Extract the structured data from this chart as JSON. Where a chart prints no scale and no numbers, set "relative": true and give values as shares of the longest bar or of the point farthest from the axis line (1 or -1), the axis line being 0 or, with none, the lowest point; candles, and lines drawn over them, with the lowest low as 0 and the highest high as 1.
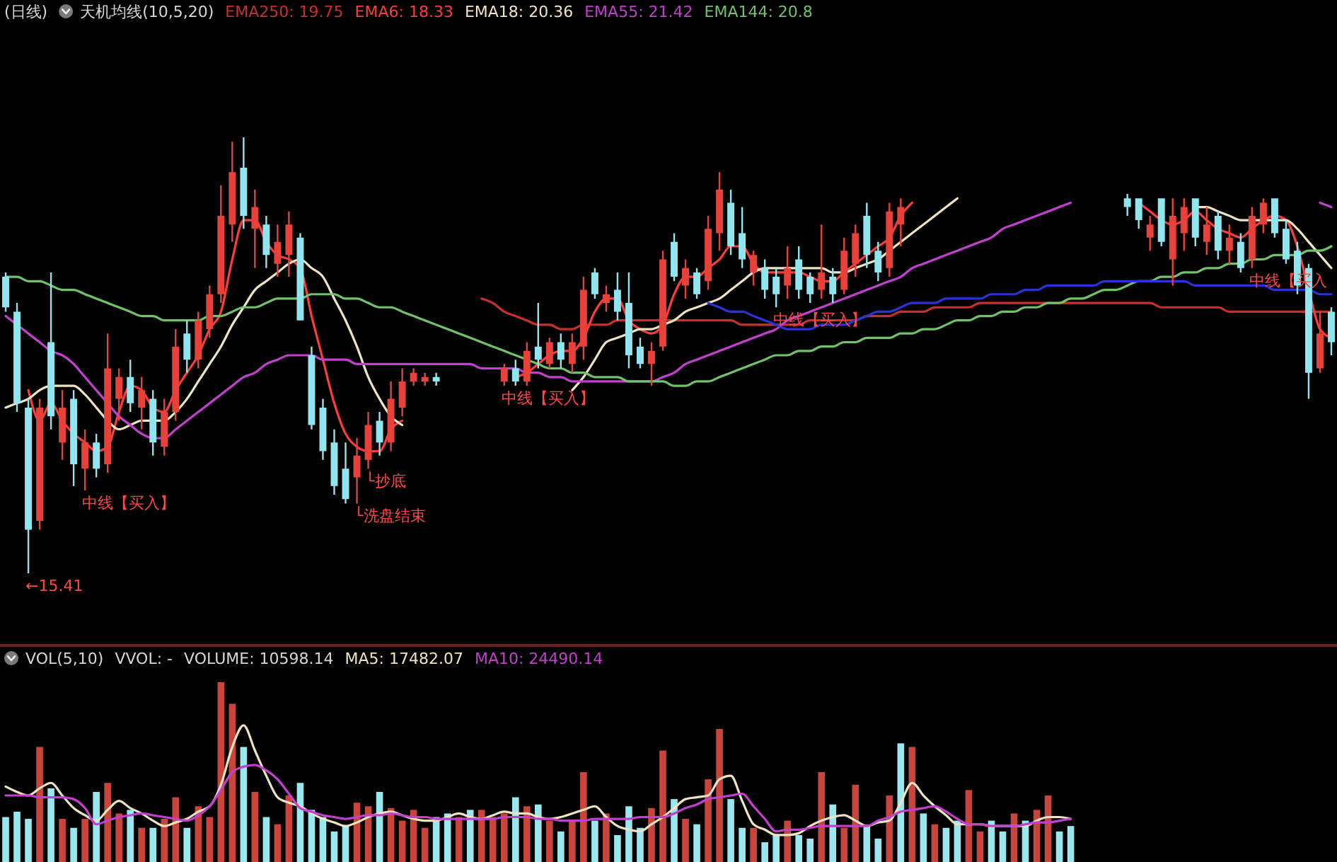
{
  "chart_data": [
    {
      "type": "candlestick",
      "title": "(日线)",
      "subtitle": "天机均线(10,5,20)",
      "relative": true,
      "categories": [
        null,
        null,
        null,
        null,
        null,
        null,
        null,
        null,
        null,
        null,
        null,
        null,
        null,
        null,
        null,
        null,
        null,
        null,
        null,
        null,
        null,
        null,
        null,
        null,
        null,
        null,
        null,
        null,
        null,
        null,
        null,
        null,
        null,
        null,
        null,
        null,
        null,
        null,
        null,
        null,
        null,
        null,
        null,
        null,
        null,
        null,
        null,
        null,
        null,
        null,
        null,
        null,
        null,
        null,
        null,
        null,
        null,
        null,
        null,
        null,
        null,
        null,
        null,
        null,
        null,
        null,
        null,
        null,
        null,
        null,
        null,
        null,
        null,
        null,
        null,
        null,
        null,
        null,
        null,
        null,
        null,
        null,
        null,
        null,
        null,
        null,
        null,
        null,
        null,
        null,
        null,
        null,
        null,
        null,
        null,
        null,
        null,
        null,
        null,
        null,
        null,
        null,
        null,
        null,
        null,
        null,
        null,
        null,
        null,
        null,
        null,
        null,
        null,
        null,
        null,
        null,
        null,
        null
      ],
      "ohlc": [
        [
          0.68,
          0.69,
          0.6,
          0.61
        ],
        [
          0.6,
          0.62,
          0.37,
          0.39
        ],
        [
          0.38,
          0.4,
          0,
          0.1
        ],
        [
          0.12,
          0.4,
          0.1,
          0.38
        ],
        [
          0.53,
          0.69,
          0.33,
          0.36
        ],
        [
          0.3,
          0.42,
          0.26,
          0.38
        ],
        [
          0.4,
          0.42,
          0.2,
          0.25
        ],
        [
          0.24,
          0.33,
          0.19,
          0.3
        ],
        [
          0.3,
          0.32,
          0.22,
          0.24
        ],
        [
          0.25,
          0.55,
          0.23,
          0.47
        ],
        [
          0.4,
          0.47,
          0.35,
          0.45
        ],
        [
          0.45,
          0.49,
          0.37,
          0.39
        ],
        [
          0.38,
          0.45,
          0.33,
          0.42
        ],
        [
          0.4,
          0.42,
          0.27,
          0.3
        ],
        [
          0.29,
          0.4,
          0.27,
          0.37
        ],
        [
          0.37,
          0.56,
          0.35,
          0.52
        ],
        [
          0.55,
          0.58,
          0.46,
          0.49
        ],
        [
          0.49,
          0.6,
          0.47,
          0.58
        ],
        [
          0.56,
          0.66,
          0.54,
          0.64
        ],
        [
          0.64,
          0.89,
          0.62,
          0.82
        ],
        [
          0.8,
          0.99,
          0.76,
          0.92
        ],
        [
          0.93,
          1,
          0.79,
          0.82
        ],
        [
          0.79,
          0.88,
          0.7,
          0.84
        ],
        [
          0.8,
          0.82,
          0.7,
          0.73
        ],
        [
          0.71,
          0.8,
          0.68,
          0.76
        ],
        [
          0.73,
          0.83,
          0.68,
          0.8
        ],
        [
          0.77,
          0.78,
          0.58,
          0.58
        ],
        [
          0.5,
          0.52,
          0.33,
          0.34
        ],
        [
          0.38,
          0.4,
          0.26,
          0.28
        ],
        [
          0.3,
          0.33,
          0.18,
          0.2
        ],
        [
          0.24,
          0.3,
          0.16,
          0.17
        ],
        [
          0.22,
          0.31,
          0.16,
          0.27
        ],
        [
          0.26,
          0.37,
          0.24,
          0.34
        ],
        [
          0.35,
          0.37,
          0.27,
          0.3
        ],
        [
          0.3,
          0.44,
          0.28,
          0.4
        ],
        [
          0.38,
          0.47,
          0.36,
          0.44
        ],
        [
          0.44,
          0.47,
          0.43,
          0.46
        ],
        [
          0.44,
          0.46,
          0.43,
          0.45
        ],
        [
          0.45,
          0.46,
          0.43,
          0.44
        ],
        null,
        null,
        null,
        null,
        null,
        [
          0.44,
          0.48,
          0.43,
          0.47
        ],
        [
          0.47,
          0.49,
          0.43,
          0.44
        ],
        [
          0.44,
          0.53,
          0.43,
          0.51
        ],
        [
          0.52,
          0.62,
          0.47,
          0.49
        ],
        [
          0.48,
          0.54,
          0.47,
          0.53
        ],
        [
          0.53,
          0.55,
          0.47,
          0.49
        ],
        [
          0.48,
          0.55,
          0.46,
          0.53
        ],
        [
          0.52,
          0.68,
          0.49,
          0.65
        ],
        [
          0.69,
          0.7,
          0.63,
          0.64
        ],
        [
          0.62,
          0.66,
          0.6,
          0.64
        ],
        [
          0.65,
          0.69,
          0.58,
          0.6
        ],
        [
          0.62,
          0.69,
          0.47,
          0.5
        ],
        [
          0.52,
          0.54,
          0.47,
          0.48
        ],
        [
          0.48,
          0.53,
          0.43,
          0.51
        ],
        [
          0.52,
          0.74,
          0.51,
          0.72
        ],
        [
          0.76,
          0.78,
          0.67,
          0.68
        ],
        [
          0.66,
          0.72,
          0.63,
          0.7
        ],
        [
          0.69,
          0.7,
          0.63,
          0.64
        ],
        [
          0.67,
          0.82,
          0.65,
          0.79
        ],
        [
          0.78,
          0.92,
          0.74,
          0.88
        ],
        [
          0.85,
          0.88,
          0.73,
          0.75
        ],
        [
          0.78,
          0.84,
          0.7,
          0.72
        ],
        [
          0.69,
          0.74,
          0.66,
          0.73
        ],
        [
          0.7,
          0.72,
          0.63,
          0.65
        ],
        [
          0.68,
          0.7,
          0.61,
          0.64
        ],
        [
          0.66,
          0.75,
          0.63,
          0.7
        ],
        [
          0.72,
          0.75,
          0.63,
          0.65
        ],
        [
          0.68,
          0.69,
          0.62,
          0.64
        ],
        [
          0.65,
          0.8,
          0.63,
          0.69
        ],
        [
          0.68,
          0.7,
          0.62,
          0.64
        ],
        [
          0.65,
          0.77,
          0.64,
          0.74
        ],
        [
          0.71,
          0.8,
          0.68,
          0.78
        ],
        [
          0.82,
          0.85,
          0.7,
          0.73
        ],
        [
          0.74,
          0.76,
          0.67,
          0.69
        ],
        [
          0.7,
          0.85,
          0.68,
          0.83
        ],
        [
          0.8,
          0.86,
          0.75,
          0.84
        ],
        null,
        null,
        null,
        null,
        null,
        null,
        null,
        null,
        null,
        null,
        null,
        null,
        null,
        null,
        null,
        null,
        null,
        null,
        null,
        [
          0.86,
          0.87,
          0.82,
          0.84
        ],
        [
          0.86,
          0.86,
          0.79,
          0.81
        ],
        [
          0.77,
          0.82,
          0.74,
          0.8
        ],
        [
          0.86,
          0.86,
          0.75,
          0.76
        ],
        [
          0.72,
          0.86,
          0.66,
          0.82
        ],
        [
          0.78,
          0.86,
          0.74,
          0.84
        ],
        [
          0.86,
          0.86,
          0.75,
          0.77
        ],
        [
          0.76,
          0.84,
          0.73,
          0.8
        ],
        [
          0.82,
          0.83,
          0.72,
          0.74
        ],
        [
          0.74,
          0.8,
          0.71,
          0.77
        ],
        [
          0.76,
          0.78,
          0.69,
          0.7
        ],
        [
          0.72,
          0.84,
          0.7,
          0.82
        ],
        [
          0.8,
          0.86,
          0.78,
          0.85
        ],
        [
          0.86,
          0.86,
          0.77,
          0.78
        ],
        [
          0.79,
          0.81,
          0.71,
          0.72
        ],
        [
          0.74,
          0.76,
          0.64,
          0.66
        ],
        [
          0.7,
          0.71,
          0.4,
          0.46
        ],
        [
          0.47,
          0.6,
          0.46,
          0.55
        ],
        [
          0.6,
          0.61,
          0.5,
          0.53
        ]
      ],
      "colors": [
        "#8fe6ee",
        "#8fe6ee",
        "#8fe6ee",
        "#e8413a",
        "#8fe6ee",
        "#e8413a",
        "#8fe6ee",
        "#e8413a",
        "#8fe6ee",
        "#e8413a",
        "#e8413a",
        "#8fe6ee",
        "#e8413a",
        "#8fe6ee",
        "#e8413a",
        "#e8413a",
        "#8fe6ee",
        "#e8413a",
        "#e8413a",
        "#e8413a",
        "#e8413a",
        "#8fe6ee",
        "#e8413a",
        "#8fe6ee",
        "#e8413a",
        "#e8413a",
        "#8fe6ee",
        "#8fe6ee",
        "#8fe6ee",
        "#8fe6ee",
        "#8fe6ee",
        "#e8413a",
        "#e8413a",
        "#8fe6ee",
        "#e8413a",
        "#e8413a",
        "#e8413a",
        "#e8413a",
        "#8fe6ee",
        null,
        null,
        null,
        null,
        null,
        "#e8413a",
        "#8fe6ee",
        "#e8413a",
        "#8fe6ee",
        "#e8413a",
        "#8fe6ee",
        "#e8413a",
        "#e8413a",
        "#8fe6ee",
        "#e8413a",
        "#8fe6ee",
        "#8fe6ee",
        "#8fe6ee",
        "#e8413a",
        "#e8413a",
        "#8fe6ee",
        "#e8413a",
        "#8fe6ee",
        "#e8413a",
        "#e8413a",
        "#8fe6ee",
        "#8fe6ee",
        "#e8413a",
        "#8fe6ee",
        "#8fe6ee",
        "#e8413a",
        "#8fe6ee",
        "#8fe6ee",
        "#e8413a",
        "#8fe6ee",
        "#e8413a",
        "#e8413a",
        "#8fe6ee",
        "#8fe6ee",
        "#e8413a",
        "#e8413a",
        null,
        null,
        null,
        null,
        null,
        null,
        null,
        null,
        null,
        null,
        null,
        null,
        null,
        null,
        null,
        null,
        null,
        null,
        null,
        "#8fe6ee",
        "#8fe6ee",
        "#e8413a",
        "#8fe6ee",
        "#e8413a",
        "#e8413a",
        "#8fe6ee",
        "#e8413a",
        "#8fe6ee",
        "#e8413a",
        "#8fe6ee",
        "#e8413a",
        "#e8413a",
        "#8fe6ee",
        "#8fe6ee",
        "#8fe6ee",
        "#8fe6ee",
        "#e8413a",
        "#8fe6ee"
      ],
      "value_labels": [
        null,
        null,
        "←15.41",
        null,
        null,
        null,
        null,
        "中线【买入】",
        null,
        null,
        null,
        null,
        null,
        null,
        null,
        null,
        null,
        null,
        null,
        null,
        null,
        null,
        null,
        null,
        null,
        null,
        null,
        null,
        null,
        null,
        null,
        "└洗盘结束",
        "└抄底",
        null,
        null,
        null,
        null,
        null,
        null,
        null,
        null,
        null,
        null,
        null,
        "中线【买入】",
        null,
        null,
        null,
        null,
        null,
        null,
        null,
        null,
        null,
        null,
        null,
        null,
        null,
        null,
        null,
        null,
        null,
        null,
        null,
        null,
        null,
        null,
        null,
        "中线【买入】",
        null,
        null,
        null,
        null,
        null,
        null,
        null,
        null,
        null,
        null,
        null,
        null,
        null,
        null,
        null,
        null,
        null,
        null,
        null,
        null,
        null,
        null,
        null,
        null,
        null,
        null,
        null,
        null,
        null,
        null,
        null,
        null,
        null,
        null,
        null,
        null,
        null,
        null,
        null,
        null,
        null,
        "中线【买入",
        null,
        null,
        null,
        null,
        null,
        null,
        null
      ],
      "series": [
        {
          "name": "EMA250: 19.75",
          "type": "line",
          "color": "#c8302c",
          "values": [
            null,
            null,
            null,
            null,
            null,
            null,
            null,
            null,
            null,
            null,
            null,
            null,
            null,
            null,
            null,
            null,
            null,
            null,
            null,
            null,
            null,
            null,
            null,
            null,
            null,
            null,
            null,
            null,
            null,
            null,
            null,
            null,
            null,
            null,
            null,
            null,
            null,
            null,
            null,
            null,
            null,
            null,
            0.63,
            0.62,
            0.6,
            0.59,
            0.58,
            0.57,
            0.57,
            0.56,
            0.56,
            0.57,
            0.57,
            0.57,
            0.58,
            0.58,
            0.58,
            0.58,
            0.58,
            0.58,
            0.58,
            0.58,
            0.58,
            0.58,
            0.58,
            0.57,
            0.57,
            0.57,
            0.57,
            0.57,
            0.57,
            0.58,
            0.58,
            0.58,
            0.58,
            0.58,
            0.59,
            0.59,
            0.59,
            0.6,
            0.6,
            0.6,
            0.61,
            0.61,
            0.61,
            0.61,
            0.62,
            0.62,
            0.62,
            0.62,
            0.62,
            0.62,
            0.62,
            0.62,
            0.62,
            0.62,
            0.62,
            0.62,
            0.62,
            0.62,
            0.62,
            0.62,
            0.61,
            0.61,
            0.61,
            0.61,
            0.61,
            0.61,
            0.6,
            0.6,
            0.6,
            0.6,
            0.6,
            0.6,
            0.6,
            0.6,
            0.6,
            0.6
          ]
        },
        {
          "name": "EMA6: 18.33",
          "type": "line",
          "color": "#ff3b3b",
          "values": [
            null,
            null,
            0.42,
            0.35,
            0.39,
            0.35,
            0.32,
            0.3,
            0.28,
            0.29,
            0.37,
            0.43,
            0.42,
            0.38,
            0.37,
            0.42,
            0.46,
            0.5,
            0.56,
            0.6,
            0.72,
            0.81,
            0.81,
            0.76,
            0.73,
            0.72,
            0.7,
            0.59,
            0.49,
            0.39,
            0.32,
            0.29,
            0.28,
            0.28,
            0.33,
            0.35,
            null,
            null,
            null,
            null,
            null,
            null,
            null,
            null,
            null,
            0.45,
            0.46,
            0.48,
            0.5,
            0.51,
            0.51,
            0.54,
            0.6,
            0.63,
            0.63,
            0.58,
            0.56,
            0.55,
            0.57,
            0.64,
            0.68,
            0.68,
            0.7,
            0.72,
            0.75,
            0.75,
            0.71,
            0.69,
            0.69,
            0.69,
            0.69,
            0.68,
            0.67,
            0.67,
            0.69,
            0.71,
            0.73,
            0.75,
            0.77,
            0.82,
            0.85,
            null,
            null,
            null,
            null,
            null,
            null,
            null,
            null,
            null,
            null,
            null,
            null,
            null,
            null,
            null,
            null,
            null,
            null,
            null,
            0.85,
            0.83,
            0.81,
            0.8,
            0.81,
            0.83,
            0.81,
            0.79,
            0.78,
            0.77,
            0.79,
            0.81,
            0.82,
            0.81,
            0.75,
            0.65,
            0.56,
            0.54
          ]
        },
        {
          "name": "EMA18: 20.36",
          "type": "line",
          "color": "#efe3c2",
          "values": [
            0.38,
            0.39,
            0.4,
            0.42,
            0.43,
            0.43,
            0.43,
            0.41,
            0.38,
            0.35,
            0.33,
            0.34,
            0.35,
            0.35,
            0.35,
            0.37,
            0.4,
            0.44,
            0.48,
            0.52,
            0.57,
            0.61,
            0.65,
            0.67,
            0.69,
            0.71,
            0.72,
            0.7,
            0.68,
            0.63,
            0.58,
            0.52,
            0.45,
            0.4,
            0.36,
            0.34,
            null,
            null,
            null,
            null,
            null,
            null,
            null,
            null,
            null,
            null,
            null,
            null,
            null,
            null,
            0.42,
            0.45,
            0.49,
            0.53,
            0.54,
            0.55,
            0.56,
            0.56,
            0.57,
            0.58,
            0.6,
            0.61,
            0.62,
            0.63,
            0.65,
            0.67,
            0.69,
            0.7,
            0.7,
            0.7,
            0.7,
            0.7,
            0.7,
            0.69,
            0.69,
            0.7,
            0.71,
            0.72,
            0.74,
            0.76,
            0.78,
            0.8,
            0.82,
            0.84,
            0.86,
            null,
            null,
            null,
            null,
            null,
            null,
            null,
            null,
            null,
            null,
            null,
            null,
            null,
            null,
            null,
            null,
            null,
            null,
            null,
            null,
            0.84,
            0.84,
            0.83,
            0.82,
            0.81,
            0.81,
            0.81,
            0.81,
            0.81,
            0.79,
            0.76,
            0.73,
            0.7
          ]
        },
        {
          "name": "EMA55: 21.42",
          "type": "line",
          "color": "#c43fd0",
          "values": [
            0.59,
            0.57,
            0.55,
            0.53,
            0.51,
            0.5,
            0.48,
            0.45,
            0.42,
            0.39,
            0.36,
            0.34,
            0.32,
            0.31,
            0.31,
            0.33,
            0.35,
            0.37,
            0.39,
            0.41,
            0.43,
            0.45,
            0.46,
            0.48,
            0.49,
            0.5,
            0.5,
            0.5,
            0.49,
            0.49,
            0.49,
            0.48,
            0.48,
            0.48,
            0.48,
            0.48,
            0.48,
            0.48,
            0.48,
            0.48,
            0.48,
            0.48,
            0.47,
            0.47,
            0.47,
            0.47,
            0.46,
            0.46,
            0.45,
            0.45,
            0.44,
            0.44,
            0.44,
            0.44,
            0.44,
            0.44,
            0.44,
            0.44,
            0.45,
            0.46,
            0.48,
            0.49,
            0.5,
            0.51,
            0.52,
            0.53,
            0.54,
            0.55,
            0.56,
            0.58,
            0.59,
            0.6,
            0.61,
            0.62,
            0.63,
            0.64,
            0.65,
            0.66,
            0.67,
            0.68,
            0.7,
            0.71,
            0.72,
            0.73,
            0.74,
            0.75,
            0.76,
            0.77,
            0.79,
            0.8,
            0.81,
            0.82,
            0.83,
            0.84,
            0.85,
            null,
            null,
            null,
            null,
            null,
            null,
            null,
            null,
            null,
            null,
            null,
            null,
            null,
            null,
            null,
            null,
            null,
            null,
            null,
            null,
            null,
            0.85,
            0.84
          ]
        },
        {
          "name": "EMA144: 20.8",
          "type": "line",
          "color": "#6fc46a",
          "values": [
            0.68,
            0.68,
            0.67,
            0.67,
            0.66,
            0.65,
            0.65,
            0.64,
            0.63,
            0.62,
            0.61,
            0.6,
            0.59,
            0.59,
            0.58,
            0.58,
            0.58,
            0.58,
            0.59,
            0.59,
            0.6,
            0.61,
            0.61,
            0.62,
            0.63,
            0.63,
            0.63,
            0.64,
            0.64,
            0.64,
            0.63,
            0.63,
            0.62,
            0.61,
            0.61,
            0.6,
            0.59,
            0.58,
            0.57,
            0.56,
            0.55,
            0.54,
            0.53,
            0.52,
            0.51,
            0.5,
            0.49,
            0.48,
            0.47,
            0.47,
            0.46,
            0.46,
            0.45,
            0.45,
            0.45,
            0.44,
            0.44,
            0.44,
            0.44,
            0.43,
            0.43,
            0.44,
            0.44,
            0.45,
            0.46,
            0.47,
            0.48,
            0.49,
            0.5,
            0.5,
            0.51,
            0.51,
            0.52,
            0.52,
            0.53,
            0.53,
            0.54,
            0.54,
            0.54,
            0.55,
            0.55,
            0.56,
            0.56,
            0.57,
            0.58,
            0.58,
            0.59,
            0.59,
            0.6,
            0.6,
            0.61,
            0.61,
            0.62,
            0.62,
            0.63,
            0.63,
            0.64,
            0.65,
            0.65,
            0.66,
            0.67,
            0.67,
            0.68,
            0.68,
            0.69,
            0.69,
            0.7,
            0.7,
            0.71,
            0.71,
            0.72,
            0.72,
            0.73,
            0.73,
            0.73,
            0.74,
            0.74,
            0.75
          ]
        },
        {
          "type": "line",
          "color": "#2a32d8",
          "values": [
            null,
            null,
            null,
            null,
            null,
            null,
            null,
            null,
            null,
            null,
            null,
            null,
            null,
            null,
            null,
            null,
            null,
            null,
            null,
            null,
            null,
            null,
            null,
            null,
            null,
            null,
            null,
            null,
            null,
            null,
            null,
            null,
            null,
            null,
            null,
            null,
            null,
            null,
            null,
            null,
            null,
            null,
            null,
            null,
            null,
            null,
            null,
            null,
            null,
            null,
            null,
            null,
            null,
            null,
            null,
            null,
            null,
            null,
            null,
            null,
            null,
            null,
            0.62,
            0.61,
            0.6,
            0.6,
            0.59,
            0.58,
            0.57,
            0.56,
            0.56,
            0.56,
            0.57,
            0.57,
            0.57,
            0.58,
            0.59,
            0.6,
            0.6,
            0.61,
            0.62,
            0.62,
            0.62,
            0.63,
            0.63,
            0.63,
            0.63,
            0.64,
            0.64,
            0.64,
            0.65,
            0.65,
            0.66,
            0.66,
            0.66,
            0.66,
            0.66,
            0.67,
            0.67,
            0.67,
            0.67,
            0.67,
            0.67,
            0.67,
            0.67,
            0.66,
            0.66,
            0.66,
            0.66,
            0.66,
            0.66,
            0.66,
            0.65,
            0.65,
            0.65,
            0.65,
            0.64,
            0.64
          ]
        }
      ]
    },
    {
      "type": "bar",
      "title": "VOL(5,10)",
      "relative": true,
      "categories": [
        null,
        null,
        null,
        null,
        null,
        null,
        null,
        null,
        null,
        null,
        null,
        null,
        null,
        null,
        null,
        null,
        null,
        null,
        null,
        null,
        null,
        null,
        null,
        null,
        null,
        null,
        null,
        null,
        null,
        null,
        null,
        null,
        null,
        null,
        null,
        null,
        null,
        null,
        null,
        null,
        null,
        null,
        null,
        null,
        null,
        null,
        null,
        null,
        null,
        null,
        null,
        null,
        null,
        null,
        null,
        null,
        null,
        null,
        null,
        null,
        null,
        null,
        null,
        null,
        null,
        null,
        null,
        null,
        null,
        null,
        null,
        null,
        null,
        null,
        null,
        null,
        null,
        null,
        null,
        null,
        null,
        null,
        null,
        null,
        null,
        null,
        null,
        null,
        null,
        null,
        null,
        null,
        null,
        null,
        null,
        null,
        null,
        null,
        null,
        null,
        null,
        null,
        null,
        null,
        null,
        null,
        null,
        null,
        null,
        null,
        null,
        null,
        null,
        null,
        null,
        null,
        null,
        null
      ],
      "annotations": [
        "VVOL: -",
        "VOLUME: 10598.14"
      ],
      "series": [
        {
          "type": "bar",
          "values": [
            0.25,
            0.28,
            0.24,
            0.64,
            0.41,
            0.24,
            0.19,
            0.24,
            0.39,
            0.44,
            0.27,
            0.29,
            0.19,
            0.19,
            0.24,
            0.36,
            0.19,
            0.31,
            0.25,
            1,
            0.88,
            0.64,
            0.39,
            0.25,
            0.21,
            0.37,
            0.44,
            0.29,
            0.25,
            0.17,
            0.2,
            0.33,
            0.31,
            0.39,
            0.3,
            0.23,
            0.29,
            0.19,
            0.25,
            0.27,
            0.25,
            0.29,
            0.29,
            0.25,
            0.27,
            0.36,
            0.31,
            0.32,
            0.23,
            0.17,
            0.23,
            0.5,
            0.23,
            0.27,
            0.15,
            0.31,
            0.19,
            0.3,
            0.62,
            0.35,
            0.24,
            0.21,
            0.46,
            0.74,
            0.35,
            0.19,
            0.19,
            0.11,
            0.15,
            0.23,
            0.15,
            0.13,
            0.5,
            0.32,
            0.19,
            0.43,
            0.2,
            0.13,
            0.37,
            0.66,
            0.64,
            0.27,
            0.21,
            0.19,
            0.23,
            0.4,
            0.17,
            0.23,
            0.17,
            0.27,
            0.23,
            0.29,
            0.37,
            0.17,
            0.2,
            null,
            null,
            null,
            null,
            null,
            null,
            null,
            null,
            null,
            null,
            null,
            null,
            null,
            null,
            null,
            null,
            null,
            null,
            null,
            null,
            null,
            null,
            null
          ],
          "colors": [
            "#9ae8ef",
            "#9ae8ef",
            "#9ae8ef",
            "#c9453c",
            "#9ae8ef",
            "#c9453c",
            "#9ae8ef",
            "#c9453c",
            "#9ae8ef",
            "#c9453c",
            "#c9453c",
            "#9ae8ef",
            "#c9453c",
            "#9ae8ef",
            "#c9453c",
            "#c9453c",
            "#9ae8ef",
            "#c9453c",
            "#c9453c",
            "#c9453c",
            "#c9453c",
            "#9ae8ef",
            "#c9453c",
            "#9ae8ef",
            "#c9453c",
            "#c9453c",
            "#9ae8ef",
            "#9ae8ef",
            "#9ae8ef",
            "#9ae8ef",
            "#9ae8ef",
            "#c9453c",
            "#c9453c",
            "#9ae8ef",
            "#c9453c",
            "#c9453c",
            "#c9453c",
            "#c9453c",
            "#9ae8ef",
            "#9ae8ef",
            "#c9453c",
            "#9ae8ef",
            "#c9453c",
            "#c9453c",
            "#c9453c",
            "#9ae8ef",
            "#c9453c",
            "#9ae8ef",
            "#c9453c",
            "#9ae8ef",
            "#c9453c",
            "#c9453c",
            "#9ae8ef",
            "#c9453c",
            "#9ae8ef",
            "#9ae8ef",
            "#9ae8ef",
            "#c9453c",
            "#c9453c",
            "#9ae8ef",
            "#c9453c",
            "#9ae8ef",
            "#c9453c",
            "#c9453c",
            "#9ae8ef",
            "#9ae8ef",
            "#c9453c",
            "#9ae8ef",
            "#9ae8ef",
            "#c9453c",
            "#9ae8ef",
            "#9ae8ef",
            "#c9453c",
            "#9ae8ef",
            "#c9453c",
            "#c9453c",
            "#9ae8ef",
            "#9ae8ef",
            "#c9453c",
            "#9ae8ef",
            "#c9453c",
            "#9ae8ef",
            "#c9453c",
            "#9ae8ef",
            "#9ae8ef",
            "#c9453c",
            "#c9453c",
            "#9ae8ef",
            "#9ae8ef",
            "#c9453c",
            "#9ae8ef",
            "#c9453c",
            "#c9453c",
            "#9ae8ef",
            "#9ae8ef",
            null,
            null,
            null,
            null,
            null,
            null,
            null,
            null,
            null,
            null,
            null,
            null,
            null,
            null,
            null,
            null,
            null,
            null,
            null,
            null,
            null,
            null,
            null
          ]
        },
        {
          "name": "MA5: 17482.07",
          "type": "line",
          "color": "#efe3c2",
          "values": [
            0.42,
            0.39,
            0.37,
            0.41,
            0.44,
            0.37,
            0.3,
            0.26,
            0.23,
            0.29,
            0.34,
            0.3,
            0.27,
            0.23,
            0.2,
            0.22,
            0.24,
            0.28,
            0.31,
            0.43,
            0.64,
            0.76,
            0.62,
            0.48,
            0.36,
            0.33,
            0.31,
            0.27,
            0.24,
            0.22,
            0.2,
            0.22,
            0.25,
            0.27,
            0.28,
            0.26,
            0.24,
            0.23,
            0.23,
            0.25,
            0.27,
            0.25,
            0.24,
            0.26,
            0.28,
            0.27,
            0.27,
            0.25,
            0.24,
            0.25,
            0.27,
            0.29,
            0.31,
            0.25,
            0.2,
            0.18,
            0.17,
            0.21,
            0.25,
            0.3,
            0.35,
            0.36,
            0.37,
            0.46,
            0.48,
            0.34,
            0.21,
            0.18,
            0.15,
            0.15,
            0.16,
            0.2,
            0.23,
            0.25,
            0.26,
            0.23,
            0.2,
            0.22,
            0.23,
            0.33,
            0.44,
            0.37,
            0.31,
            0.26,
            0.21,
            0.21,
            0.21,
            0.2,
            0.2,
            0.2,
            0.2,
            0.23,
            0.25,
            0.25,
            0.24,
            null,
            null,
            null,
            null,
            null,
            null,
            null,
            null,
            null,
            null,
            null,
            null,
            null,
            null,
            null,
            null,
            null,
            null,
            null,
            null,
            null,
            null,
            null
          ]
        },
        {
          "name": "MA10: 24490.14",
          "type": "line",
          "color": "#c43fd0",
          "values": [
            0.37,
            0.37,
            0.37,
            0.36,
            0.36,
            0.36,
            0.35,
            0.3,
            0.21,
            0.23,
            0.25,
            0.26,
            0.27,
            0.26,
            0.25,
            0.24,
            0.23,
            0.26,
            0.31,
            0.4,
            0.5,
            0.53,
            0.54,
            0.51,
            0.46,
            0.38,
            0.3,
            0.28,
            0.26,
            0.25,
            0.24,
            0.25,
            0.26,
            0.26,
            0.27,
            0.26,
            0.25,
            0.25,
            0.24,
            0.24,
            0.24,
            0.24,
            0.24,
            0.24,
            0.25,
            0.25,
            0.25,
            0.24,
            0.24,
            0.23,
            0.23,
            0.23,
            0.24,
            0.24,
            0.24,
            0.24,
            0.25,
            0.25,
            0.25,
            0.27,
            0.3,
            0.32,
            0.35,
            0.36,
            0.37,
            0.38,
            0.31,
            0.24,
            0.17,
            0.18,
            0.18,
            0.19,
            0.2,
            0.2,
            0.2,
            0.2,
            0.2,
            0.23,
            0.25,
            0.28,
            0.29,
            0.3,
            0.31,
            0.28,
            0.24,
            0.21,
            0.21,
            0.2,
            0.2,
            0.2,
            0.21,
            0.22,
            0.22,
            0.23,
            0.24,
            null,
            null,
            null,
            null,
            null,
            null,
            null,
            null,
            null,
            null,
            null,
            null,
            null,
            null,
            null,
            null,
            null,
            null,
            null,
            null,
            null,
            null,
            null
          ]
        }
      ]
    }
  ]
}
